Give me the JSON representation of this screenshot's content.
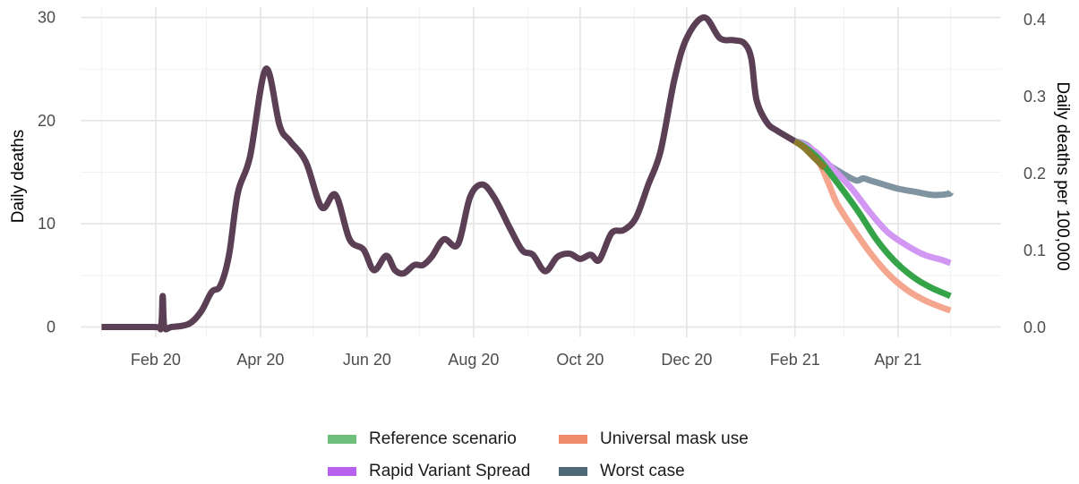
{
  "chart_data": {
    "type": "line",
    "title": "",
    "ylabel": "Daily deaths",
    "y2label": "Daily deaths per 100,000",
    "xlim": [
      "2019-12-20",
      "2021-05-30"
    ],
    "ylim": [
      -1,
      31
    ],
    "y2lim": [
      -0.013,
      0.416
    ],
    "y2_ticks": [
      {
        "value": 0.0,
        "label": "0.0"
      },
      {
        "value": 0.1,
        "label": "0.1"
      },
      {
        "value": 0.2,
        "label": "0.2"
      },
      {
        "value": 0.3,
        "label": "0.3"
      },
      {
        "value": 0.4,
        "label": "0.4"
      }
    ],
    "y_ticks": [
      {
        "value": 0,
        "label": "0"
      },
      {
        "value": 10,
        "label": "10"
      },
      {
        "value": 20,
        "label": "20"
      },
      {
        "value": 30,
        "label": "30"
      }
    ],
    "x_ticks": [
      {
        "date": "2020-02-01",
        "label": "Feb 20"
      },
      {
        "date": "2020-04-01",
        "label": "Apr 20"
      },
      {
        "date": "2020-06-01",
        "label": "Jun 20"
      },
      {
        "date": "2020-08-01",
        "label": "Aug 20"
      },
      {
        "date": "2020-10-01",
        "label": "Oct 20"
      },
      {
        "date": "2020-12-01",
        "label": "Dec 20"
      },
      {
        "date": "2021-02-01",
        "label": "Feb 21"
      },
      {
        "date": "2021-04-01",
        "label": "Apr 21"
      }
    ],
    "x_minor_ticks": [
      "2020-01-01",
      "2020-03-01",
      "2020-05-01",
      "2020-07-01",
      "2020-09-01",
      "2020-11-01",
      "2021-01-01",
      "2021-03-01",
      "2021-05-01"
    ],
    "grid": true,
    "legend_position": "bottom",
    "legend": [
      {
        "label": "Reference scenario",
        "color": "#6ebf7b"
      },
      {
        "label": "Universal mask use",
        "color": "#ef8a6b"
      },
      {
        "label": "Rapid Variant Spread",
        "color": "#b861ef"
      },
      {
        "label": "Worst case",
        "color": "#4e6878"
      }
    ],
    "series": [
      {
        "key": "observed",
        "color": "#5a3f55",
        "points": [
          [
            "2020-01-01",
            0
          ],
          [
            "2020-01-31",
            0
          ],
          [
            "2020-02-04",
            0
          ],
          [
            "2020-02-05",
            3.0
          ],
          [
            "2020-02-06",
            0
          ],
          [
            "2020-02-10",
            0
          ],
          [
            "2020-02-20",
            0.3
          ],
          [
            "2020-02-27",
            1.5
          ],
          [
            "2020-03-04",
            3.4
          ],
          [
            "2020-03-09",
            4.0
          ],
          [
            "2020-03-14",
            7.0
          ],
          [
            "2020-03-19",
            13.0
          ],
          [
            "2020-03-26",
            16.5
          ],
          [
            "2020-04-04",
            25.0
          ],
          [
            "2020-04-12",
            19.5
          ],
          [
            "2020-04-18",
            18.0
          ],
          [
            "2020-04-27",
            16.0
          ],
          [
            "2020-05-06",
            11.6
          ],
          [
            "2020-05-14",
            12.8
          ],
          [
            "2020-05-22",
            8.5
          ],
          [
            "2020-05-30",
            7.5
          ],
          [
            "2020-06-05",
            5.5
          ],
          [
            "2020-06-12",
            6.9
          ],
          [
            "2020-06-17",
            5.5
          ],
          [
            "2020-06-22",
            5.2
          ],
          [
            "2020-06-28",
            6.0
          ],
          [
            "2020-07-03",
            6.0
          ],
          [
            "2020-07-08",
            6.8
          ],
          [
            "2020-07-15",
            8.5
          ],
          [
            "2020-07-23",
            8.0
          ],
          [
            "2020-07-30",
            12.6
          ],
          [
            "2020-08-06",
            13.8
          ],
          [
            "2020-08-13",
            12.5
          ],
          [
            "2020-08-22",
            9.5
          ],
          [
            "2020-08-29",
            7.4
          ],
          [
            "2020-09-04",
            7.0
          ],
          [
            "2020-09-11",
            5.4
          ],
          [
            "2020-09-18",
            6.8
          ],
          [
            "2020-09-25",
            7.1
          ],
          [
            "2020-10-01",
            6.6
          ],
          [
            "2020-10-07",
            7.0
          ],
          [
            "2020-10-12",
            6.5
          ],
          [
            "2020-10-19",
            9.1
          ],
          [
            "2020-10-26",
            9.4
          ],
          [
            "2020-11-02",
            10.6
          ],
          [
            "2020-11-09",
            13.8
          ],
          [
            "2020-11-16",
            17.0
          ],
          [
            "2020-11-24",
            24.0
          ],
          [
            "2020-12-01",
            28.0
          ],
          [
            "2020-12-11",
            30.0
          ],
          [
            "2020-12-20",
            28.0
          ],
          [
            "2020-12-28",
            27.8
          ],
          [
            "2021-01-03",
            27.5
          ],
          [
            "2021-01-07",
            26.0
          ],
          [
            "2021-01-10",
            22.0
          ],
          [
            "2021-01-16",
            19.8
          ],
          [
            "2021-01-22",
            19.0
          ],
          [
            "2021-02-01",
            18.0
          ]
        ]
      },
      {
        "key": "worst",
        "color": "#7f93a1",
        "points": [
          [
            "2021-02-01",
            18.0
          ],
          [
            "2021-02-08",
            17.6
          ],
          [
            "2021-02-18",
            16.0
          ],
          [
            "2021-02-28",
            14.9
          ],
          [
            "2021-03-08",
            14.2
          ],
          [
            "2021-03-12",
            14.4
          ],
          [
            "2021-03-16",
            14.2
          ],
          [
            "2021-03-22",
            13.9
          ],
          [
            "2021-04-01",
            13.4
          ],
          [
            "2021-04-11",
            13.1
          ],
          [
            "2021-04-21",
            12.8
          ],
          [
            "2021-04-30",
            12.9
          ],
          [
            "2021-05-01",
            13.1
          ]
        ]
      },
      {
        "key": "rapid",
        "color": "#d197f3",
        "points": [
          [
            "2021-02-01",
            18.0
          ],
          [
            "2021-02-06",
            17.7
          ],
          [
            "2021-02-14",
            16.8
          ],
          [
            "2021-02-24",
            15.1
          ],
          [
            "2021-03-06",
            13.3
          ],
          [
            "2021-03-16",
            11.1
          ],
          [
            "2021-03-26",
            9.2
          ],
          [
            "2021-04-06",
            7.9
          ],
          [
            "2021-04-16",
            7.0
          ],
          [
            "2021-04-26",
            6.5
          ],
          [
            "2021-05-01",
            6.2
          ]
        ]
      },
      {
        "key": "mask",
        "color": "#f4a68e",
        "points": [
          [
            "2021-02-01",
            18.0
          ],
          [
            "2021-02-06",
            17.5
          ],
          [
            "2021-02-14",
            16.2
          ],
          [
            "2021-02-20",
            14.0
          ],
          [
            "2021-02-25",
            12.0
          ],
          [
            "2021-03-06",
            9.6
          ],
          [
            "2021-03-16",
            7.2
          ],
          [
            "2021-03-26",
            5.2
          ],
          [
            "2021-04-06",
            3.6
          ],
          [
            "2021-04-16",
            2.6
          ],
          [
            "2021-04-26",
            1.9
          ],
          [
            "2021-05-01",
            1.6
          ]
        ]
      },
      {
        "key": "reference",
        "color": "#35a449",
        "points": [
          [
            "2021-02-01",
            18.0
          ],
          [
            "2021-02-06",
            17.5
          ],
          [
            "2021-02-14",
            16.4
          ],
          [
            "2021-02-22",
            14.7
          ],
          [
            "2021-03-02",
            12.9
          ],
          [
            "2021-03-10",
            11.0
          ],
          [
            "2021-03-20",
            8.4
          ],
          [
            "2021-03-30",
            6.4
          ],
          [
            "2021-04-10",
            4.8
          ],
          [
            "2021-04-20",
            3.8
          ],
          [
            "2021-05-01",
            3.0
          ]
        ]
      },
      {
        "key": "overlap",
        "color": "#8b7a2e",
        "points": [
          [
            "2021-02-01",
            18.0
          ],
          [
            "2021-02-06",
            17.4
          ],
          [
            "2021-02-12",
            16.4
          ],
          [
            "2021-02-18",
            15.4
          ]
        ]
      }
    ]
  }
}
